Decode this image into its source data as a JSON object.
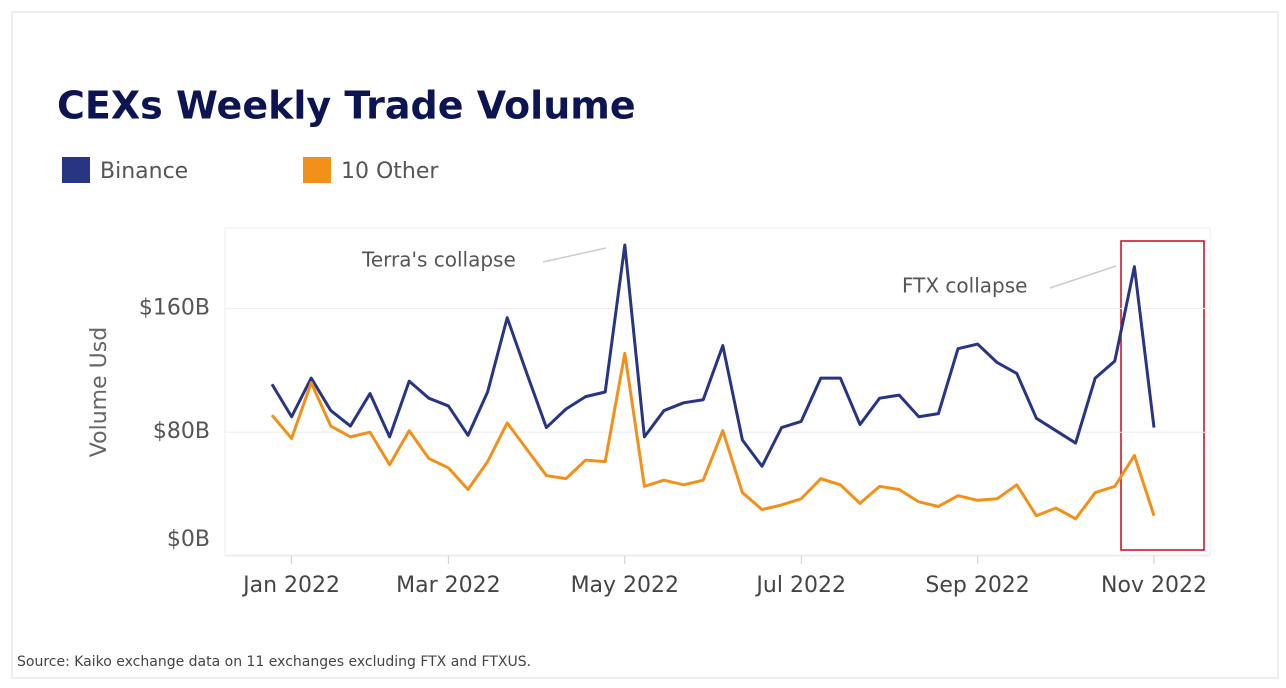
{
  "chart_data": {
    "type": "line",
    "title": "CEXs Weekly Trade Volume",
    "y_label": "Volume Usd",
    "source": "Source: Kaiko exchange data on 11 exchanges excluding FTX and FTXUS.",
    "annotations": [
      "Terra's collapse",
      "FTX collapse"
    ],
    "categories": [
      null,
      "Jan 2022",
      null,
      null,
      null,
      null,
      null,
      null,
      null,
      "Mar 2022",
      null,
      null,
      null,
      null,
      null,
      null,
      null,
      null,
      "May 2022",
      null,
      null,
      null,
      null,
      null,
      null,
      null,
      null,
      "Jul 2022",
      null,
      null,
      null,
      null,
      null,
      null,
      null,
      null,
      "Sep 2022",
      null,
      null,
      null,
      null,
      null,
      null,
      null,
      null,
      "Nov 2022"
    ],
    "series": [
      {
        "name": "Binance",
        "color": "#283583",
        "values": [
          111,
          90,
          115,
          94,
          84,
          105,
          77,
          113,
          102,
          97,
          78,
          106,
          154,
          118,
          83,
          95,
          103,
          106,
          201,
          77,
          94,
          99,
          101,
          136,
          75,
          58,
          83,
          87,
          115,
          115,
          85,
          102,
          104,
          90,
          92,
          134,
          137,
          125,
          118,
          89,
          81,
          73,
          115,
          126,
          187,
          83
        ]
      },
      {
        "name": "10 Other",
        "color": "#f39019",
        "values": [
          91,
          76,
          112,
          84,
          77,
          80,
          59,
          81,
          63,
          57,
          43,
          61,
          86,
          69,
          52,
          50,
          62,
          61,
          131,
          45,
          49,
          46,
          49,
          81,
          41,
          30,
          33,
          37,
          50,
          46,
          34,
          45,
          43,
          35,
          32,
          39,
          36,
          37,
          46,
          26,
          31,
          24,
          41,
          45,
          65,
          26
        ]
      }
    ],
    "ylim": [
      0,
      212
    ],
    "yticks": [
      {
        "value": 0,
        "label": "$0B"
      },
      {
        "value": 80,
        "label": "$80B"
      },
      {
        "value": 160,
        "label": "$160B"
      }
    ],
    "grid": true
  }
}
